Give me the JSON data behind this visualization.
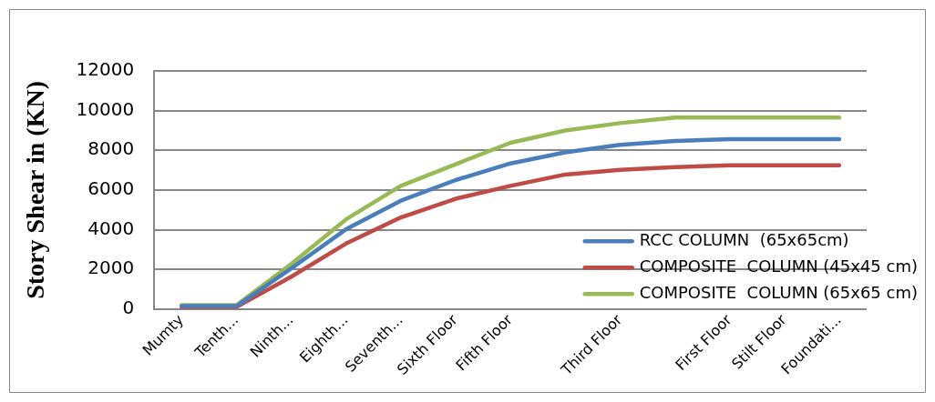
{
  "chart_data": {
    "type": "line",
    "ylabel": "Story Shear in (KN)",
    "categories": [
      "Mumty",
      "Tenth...",
      "Ninth...",
      "Eighth...",
      "Seventh...",
      "Sixth Floor",
      "Fifth Floor",
      null,
      "Third Floor",
      null,
      "First Floor",
      "Stilt Floor",
      "Foundati..."
    ],
    "series": [
      {
        "name": "RCC COLUMN  (65x65cm)",
        "color": "#4a7ebb",
        "values": [
          150,
          150,
          2050,
          4020,
          5460,
          6500,
          7340,
          7900,
          8280,
          8470,
          8560,
          8560,
          8560
        ]
      },
      {
        "name": "COMPOSITE  COLUMN (45x45 cm)",
        "color": "#be4b48",
        "values": [
          100,
          100,
          1630,
          3300,
          4620,
          5560,
          6210,
          6780,
          7020,
          7150,
          7250,
          7250,
          7250
        ]
      },
      {
        "name": "COMPOSITE  COLUMN (65x65 cm)",
        "color": "#98b954",
        "values": [
          200,
          200,
          2270,
          4520,
          6210,
          7300,
          8380,
          9000,
          9370,
          9650,
          9650,
          9650,
          9650
        ]
      }
    ],
    "ylim": [
      0,
      12000
    ],
    "yticks": [
      0,
      2000,
      4000,
      6000,
      8000,
      10000,
      12000
    ],
    "grid": "y",
    "legend": "bottom right",
    "marker": "none",
    "line_style": "solid"
  }
}
